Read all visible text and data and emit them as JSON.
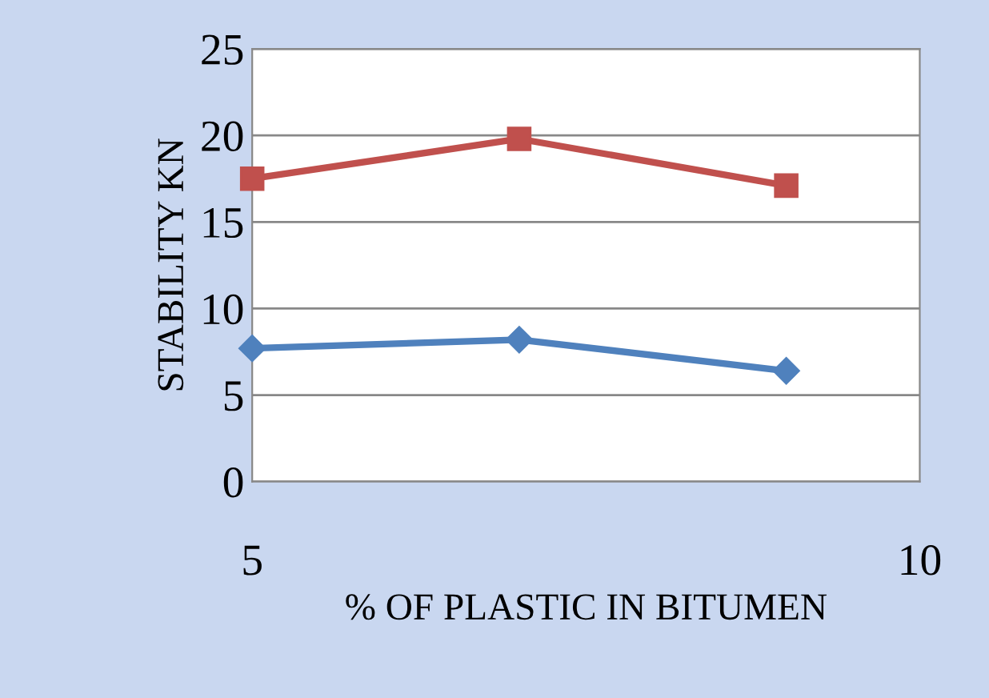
{
  "chart_data": {
    "type": "line",
    "xlabel": "% OF PLASTIC IN BITUMEN",
    "ylabel": "STABILITY KN",
    "x": [
      5,
      7,
      9
    ],
    "series": [
      {
        "color": "#4f81bd",
        "values": [
          7.7,
          8.2,
          6.4
        ],
        "marker": "diamond"
      },
      {
        "color": "#c0504d",
        "values": [
          17.5,
          19.8,
          17.1
        ],
        "marker": "square"
      }
    ],
    "xlim": [
      5,
      10
    ],
    "xticks": [
      5,
      10
    ],
    "ylim": [
      0,
      25
    ],
    "yticks": [
      0,
      5,
      10,
      15,
      20,
      25
    ],
    "grid": "y",
    "legend": false
  }
}
